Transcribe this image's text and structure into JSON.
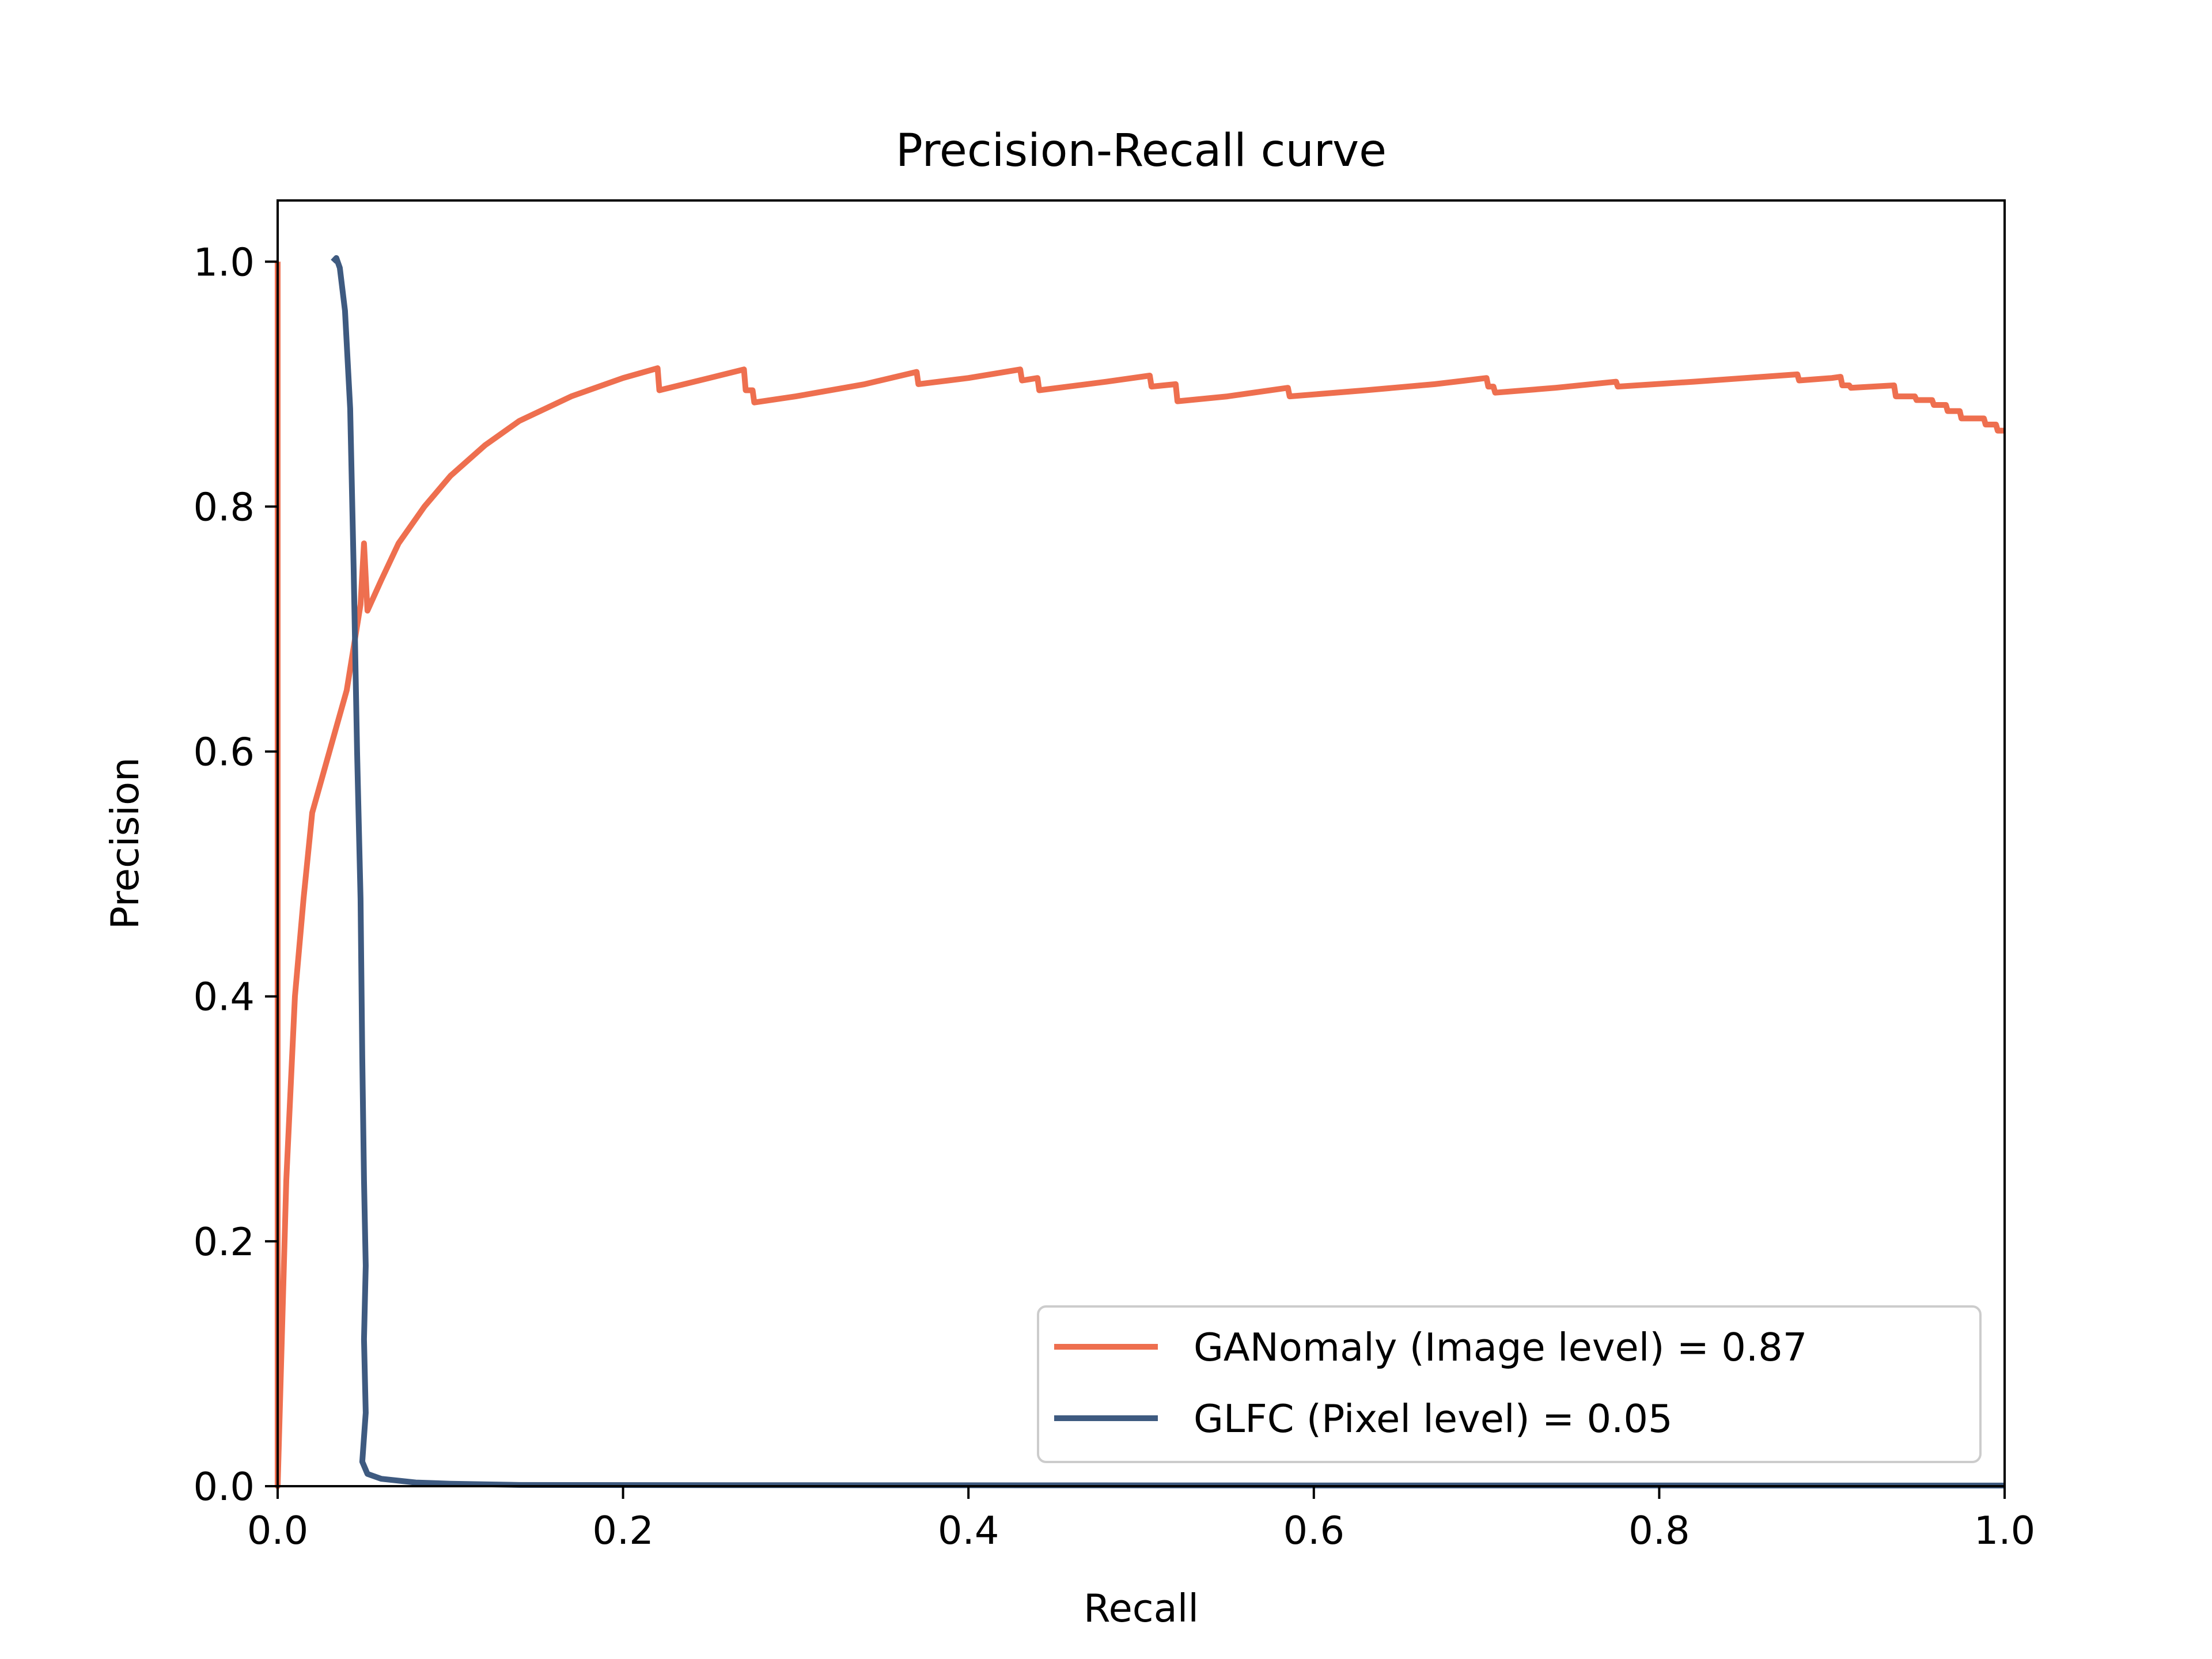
{
  "chart_data": {
    "type": "line",
    "title": "Precision-Recall curve",
    "xlabel": "Recall",
    "ylabel": "Precision",
    "xlim": [
      0.0,
      1.0
    ],
    "ylim": [
      0.0,
      1.05
    ],
    "xticks": [
      "0.0",
      "0.2",
      "0.4",
      "0.6",
      "0.8",
      "1.0"
    ],
    "yticks": [
      "0.0",
      "0.2",
      "0.4",
      "0.6",
      "0.8",
      "1.0"
    ],
    "grid": false,
    "legend_position": "lower-right",
    "series": [
      {
        "name": "GANomaly (Image level) = 0.87",
        "color": "#EE6F4F",
        "points": [
          [
            0.0,
            1.0
          ],
          [
            0.0,
            0.0
          ],
          [
            0.005,
            0.25
          ],
          [
            0.01,
            0.4
          ],
          [
            0.015,
            0.48
          ],
          [
            0.02,
            0.55
          ],
          [
            0.03,
            0.6
          ],
          [
            0.04,
            0.65
          ],
          [
            0.048,
            0.72
          ],
          [
            0.05,
            0.77
          ],
          [
            0.052,
            0.715
          ],
          [
            0.06,
            0.74
          ],
          [
            0.07,
            0.77
          ],
          [
            0.085,
            0.8
          ],
          [
            0.1,
            0.825
          ],
          [
            0.12,
            0.85
          ],
          [
            0.14,
            0.87
          ],
          [
            0.17,
            0.89
          ],
          [
            0.2,
            0.905
          ],
          [
            0.22,
            0.913
          ],
          [
            0.221,
            0.895
          ],
          [
            0.25,
            0.905
          ],
          [
            0.27,
            0.912
          ],
          [
            0.271,
            0.895
          ],
          [
            0.275,
            0.895
          ],
          [
            0.276,
            0.885
          ],
          [
            0.3,
            0.89
          ],
          [
            0.34,
            0.9
          ],
          [
            0.37,
            0.91
          ],
          [
            0.371,
            0.9
          ],
          [
            0.4,
            0.905
          ],
          [
            0.43,
            0.912
          ],
          [
            0.431,
            0.903
          ],
          [
            0.44,
            0.905
          ],
          [
            0.441,
            0.895
          ],
          [
            0.48,
            0.902
          ],
          [
            0.505,
            0.907
          ],
          [
            0.506,
            0.898
          ],
          [
            0.52,
            0.9
          ],
          [
            0.521,
            0.886
          ],
          [
            0.55,
            0.89
          ],
          [
            0.585,
            0.897
          ],
          [
            0.586,
            0.89
          ],
          [
            0.63,
            0.895
          ],
          [
            0.67,
            0.9
          ],
          [
            0.7,
            0.905
          ],
          [
            0.701,
            0.898
          ],
          [
            0.704,
            0.898
          ],
          [
            0.705,
            0.893
          ],
          [
            0.74,
            0.897
          ],
          [
            0.775,
            0.902
          ],
          [
            0.776,
            0.898
          ],
          [
            0.82,
            0.902
          ],
          [
            0.86,
            0.906
          ],
          [
            0.88,
            0.908
          ],
          [
            0.881,
            0.903
          ],
          [
            0.9,
            0.905
          ],
          [
            0.905,
            0.906
          ],
          [
            0.906,
            0.899
          ],
          [
            0.91,
            0.899
          ],
          [
            0.911,
            0.897
          ],
          [
            0.936,
            0.899
          ],
          [
            0.937,
            0.89
          ],
          [
            0.948,
            0.89
          ],
          [
            0.949,
            0.887
          ],
          [
            0.958,
            0.887
          ],
          [
            0.959,
            0.883
          ],
          [
            0.966,
            0.883
          ],
          [
            0.967,
            0.878
          ],
          [
            0.974,
            0.878
          ],
          [
            0.975,
            0.872
          ],
          [
            0.988,
            0.872
          ],
          [
            0.989,
            0.867
          ],
          [
            0.995,
            0.867
          ],
          [
            0.996,
            0.862
          ],
          [
            1.0,
            0.862
          ]
        ]
      },
      {
        "name": "GLFC (Pixel level) = 0.05",
        "color": "#3E5A80",
        "points": [
          [
            0.032,
            1.0
          ],
          [
            0.034,
            1.003
          ],
          [
            0.036,
            0.995
          ],
          [
            0.039,
            0.96
          ],
          [
            0.042,
            0.88
          ],
          [
            0.044,
            0.75
          ],
          [
            0.046,
            0.6
          ],
          [
            0.048,
            0.48
          ],
          [
            0.049,
            0.35
          ],
          [
            0.05,
            0.25
          ],
          [
            0.051,
            0.18
          ],
          [
            0.05,
            0.12
          ],
          [
            0.051,
            0.06
          ],
          [
            0.049,
            0.02
          ],
          [
            0.052,
            0.01
          ],
          [
            0.06,
            0.006
          ],
          [
            0.08,
            0.003
          ],
          [
            0.1,
            0.002
          ],
          [
            0.14,
            0.001
          ],
          [
            0.3,
            0.0008
          ],
          [
            0.6,
            0.0006
          ],
          [
            1.0,
            0.0005
          ]
        ]
      }
    ]
  }
}
